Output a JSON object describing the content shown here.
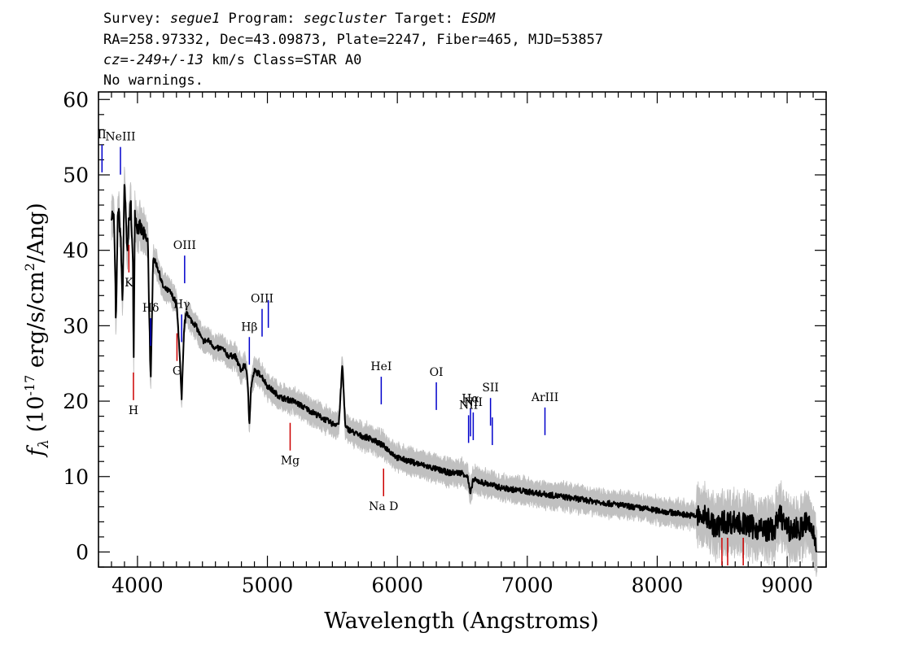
{
  "header": {
    "line1": {
      "survey_label": "Survey: ",
      "survey": "segue1",
      "program_label": " Program: ",
      "program": "segcluster",
      "target_label": " Target: ",
      "target": "ESDM"
    },
    "line2": "RA=258.97332, Dec=43.09873, Plate=2247, Fiber=465, MJD=53857",
    "line3": {
      "cz_label": "cz=",
      "cz_value": "-249+/-13",
      "rest": " km/s Class=STAR A0"
    },
    "line4": "No warnings."
  },
  "chart_data": {
    "type": "line",
    "xlabel": "Wavelength (Angstroms)",
    "ylabel": {
      "prefix": "f",
      "sub": "λ",
      "units_open": " (10",
      "exponent": "-17",
      "units_mid": " erg/s/cm",
      "exponent2": "2",
      "units_close": "/Ang)"
    },
    "xlim": [
      3700,
      9300
    ],
    "ylim": [
      -2,
      61
    ],
    "x_ticks": [
      4000,
      5000,
      6000,
      7000,
      8000,
      9000
    ],
    "y_ticks": [
      0,
      10,
      20,
      30,
      40,
      50,
      60
    ],
    "colors": {
      "flux": "#000000",
      "noise": "#c0c0c0",
      "emission": "#0000cc",
      "absorption": "#cc0000"
    },
    "series": [
      {
        "x": [
          3800,
          3820,
          3835,
          3850,
          3870,
          3885,
          3900,
          3920,
          3935,
          3950,
          3965,
          3970,
          3980,
          4000,
          4020,
          4050,
          4080,
          4102,
          4120,
          4150,
          4200,
          4250,
          4300,
          4320,
          4340,
          4360,
          4380,
          4400,
          4450,
          4500,
          4550,
          4600,
          4650,
          4700,
          4750,
          4800,
          4830,
          4850,
          4861,
          4875,
          4900,
          4950,
          5000,
          5100,
          5200,
          5300,
          5400,
          5500,
          5550,
          5577,
          5600,
          5700,
          5800,
          5900,
          6000,
          6100,
          6200,
          6300,
          6400,
          6500,
          6540,
          6563,
          6580,
          6600,
          6700,
          6800,
          7000,
          7200,
          7400,
          7600,
          7800,
          8000,
          8200,
          8400,
          8450,
          8500,
          8600,
          8700,
          8800,
          8900,
          8950,
          9000,
          9100,
          9150,
          9200,
          9230
        ],
        "y": [
          45,
          44,
          30,
          46,
          42,
          33,
          49,
          40,
          44,
          46,
          38,
          24,
          45,
          43,
          43,
          42,
          41,
          22,
          39,
          38,
          35,
          34.5,
          33,
          28,
          20,
          30,
          32,
          31,
          30,
          28,
          28,
          27,
          27,
          26,
          26,
          24,
          25,
          22,
          17,
          22,
          24,
          23.5,
          22,
          20.5,
          20,
          19,
          18,
          17,
          17,
          25,
          16.5,
          15.5,
          15,
          14,
          12.5,
          12,
          11.5,
          11,
          10.5,
          10.5,
          10,
          7.5,
          9.5,
          9.5,
          9,
          8.5,
          8,
          7.5,
          7,
          6.5,
          6,
          5.5,
          5,
          4.5,
          3,
          4,
          4,
          3.5,
          3,
          3,
          5,
          3,
          3,
          4,
          2.5,
          1
        ]
      }
    ],
    "emission_lines": [
      {
        "label": "II",
        "wavelength": 3727
      },
      {
        "label": "NeIII",
        "wavelength": 3869
      },
      {
        "label": "Hδ",
        "wavelength": 4102
      },
      {
        "label": "Hγ",
        "wavelength": 4340
      },
      {
        "label": "OIII",
        "wavelength": 4363
      },
      {
        "label": "Hβ",
        "wavelength": 4861
      },
      {
        "label": "OIII",
        "wavelength": 4959
      },
      {
        "label": "",
        "wavelength": 5007
      },
      {
        "label": "HeI",
        "wavelength": 5876
      },
      {
        "label": "OI",
        "wavelength": 6300
      },
      {
        "label": "NII",
        "wavelength": 6548
      },
      {
        "label": "Hα",
        "wavelength": 6563
      },
      {
        "label": "NII",
        "wavelength": 6584
      },
      {
        "label": "SII",
        "wavelength": 6717
      },
      {
        "label": "",
        "wavelength": 6731
      },
      {
        "label": "ArIII",
        "wavelength": 7136
      }
    ],
    "absorption_lines": [
      {
        "label": "K",
        "wavelength": 3934
      },
      {
        "label": "H",
        "wavelength": 3969
      },
      {
        "label": "G",
        "wavelength": 4304
      },
      {
        "label": "Mg",
        "wavelength": 5175
      },
      {
        "label": "Na D",
        "wavelength": 5894
      },
      {
        "label": "",
        "wavelength": 8498
      },
      {
        "label": "",
        "wavelength": 8542
      },
      {
        "label": "",
        "wavelength": 8662
      }
    ]
  }
}
